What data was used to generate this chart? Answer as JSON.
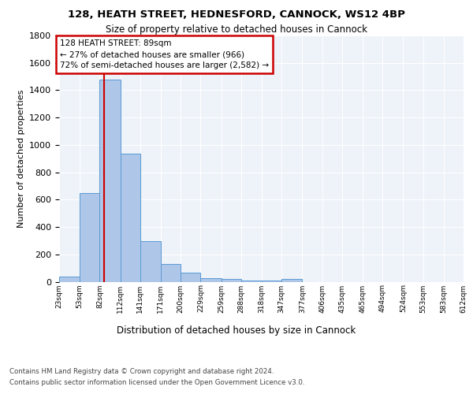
{
  "title1": "128, HEATH STREET, HEDNESFORD, CANNOCK, WS12 4BP",
  "title2": "Size of property relative to detached houses in Cannock",
  "xlabel": "Distribution of detached houses by size in Cannock",
  "ylabel": "Number of detached properties",
  "bar_color": "#aec6e8",
  "bar_edgecolor": "#5b9bd5",
  "bg_color": "#eef2f9",
  "annotation_text": "128 HEATH STREET: 89sqm\n← 27% of detached houses are smaller (966)\n72% of semi-detached houses are larger (2,582) →",
  "vline_x": 89,
  "vline_color": "#cc0000",
  "footnote1": "Contains HM Land Registry data © Crown copyright and database right 2024.",
  "footnote2": "Contains public sector information licensed under the Open Government Licence v3.0.",
  "bin_edges": [
    23,
    53,
    82,
    112,
    141,
    171,
    200,
    229,
    259,
    288,
    318,
    347,
    377,
    406,
    435,
    465,
    494,
    524,
    553,
    583,
    612
  ],
  "bin_counts": [
    35,
    650,
    1480,
    935,
    295,
    130,
    65,
    25,
    20,
    10,
    8,
    20,
    0,
    0,
    0,
    0,
    0,
    0,
    0,
    0
  ],
  "tick_labels": [
    "23sqm",
    "53sqm",
    "82sqm",
    "112sqm",
    "141sqm",
    "171sqm",
    "200sqm",
    "229sqm",
    "259sqm",
    "288sqm",
    "318sqm",
    "347sqm",
    "377sqm",
    "406sqm",
    "435sqm",
    "465sqm",
    "494sqm",
    "524sqm",
    "553sqm",
    "583sqm",
    "612sqm"
  ],
  "ylim": [
    0,
    1800
  ],
  "yticks": [
    0,
    200,
    400,
    600,
    800,
    1000,
    1200,
    1400,
    1600,
    1800
  ]
}
